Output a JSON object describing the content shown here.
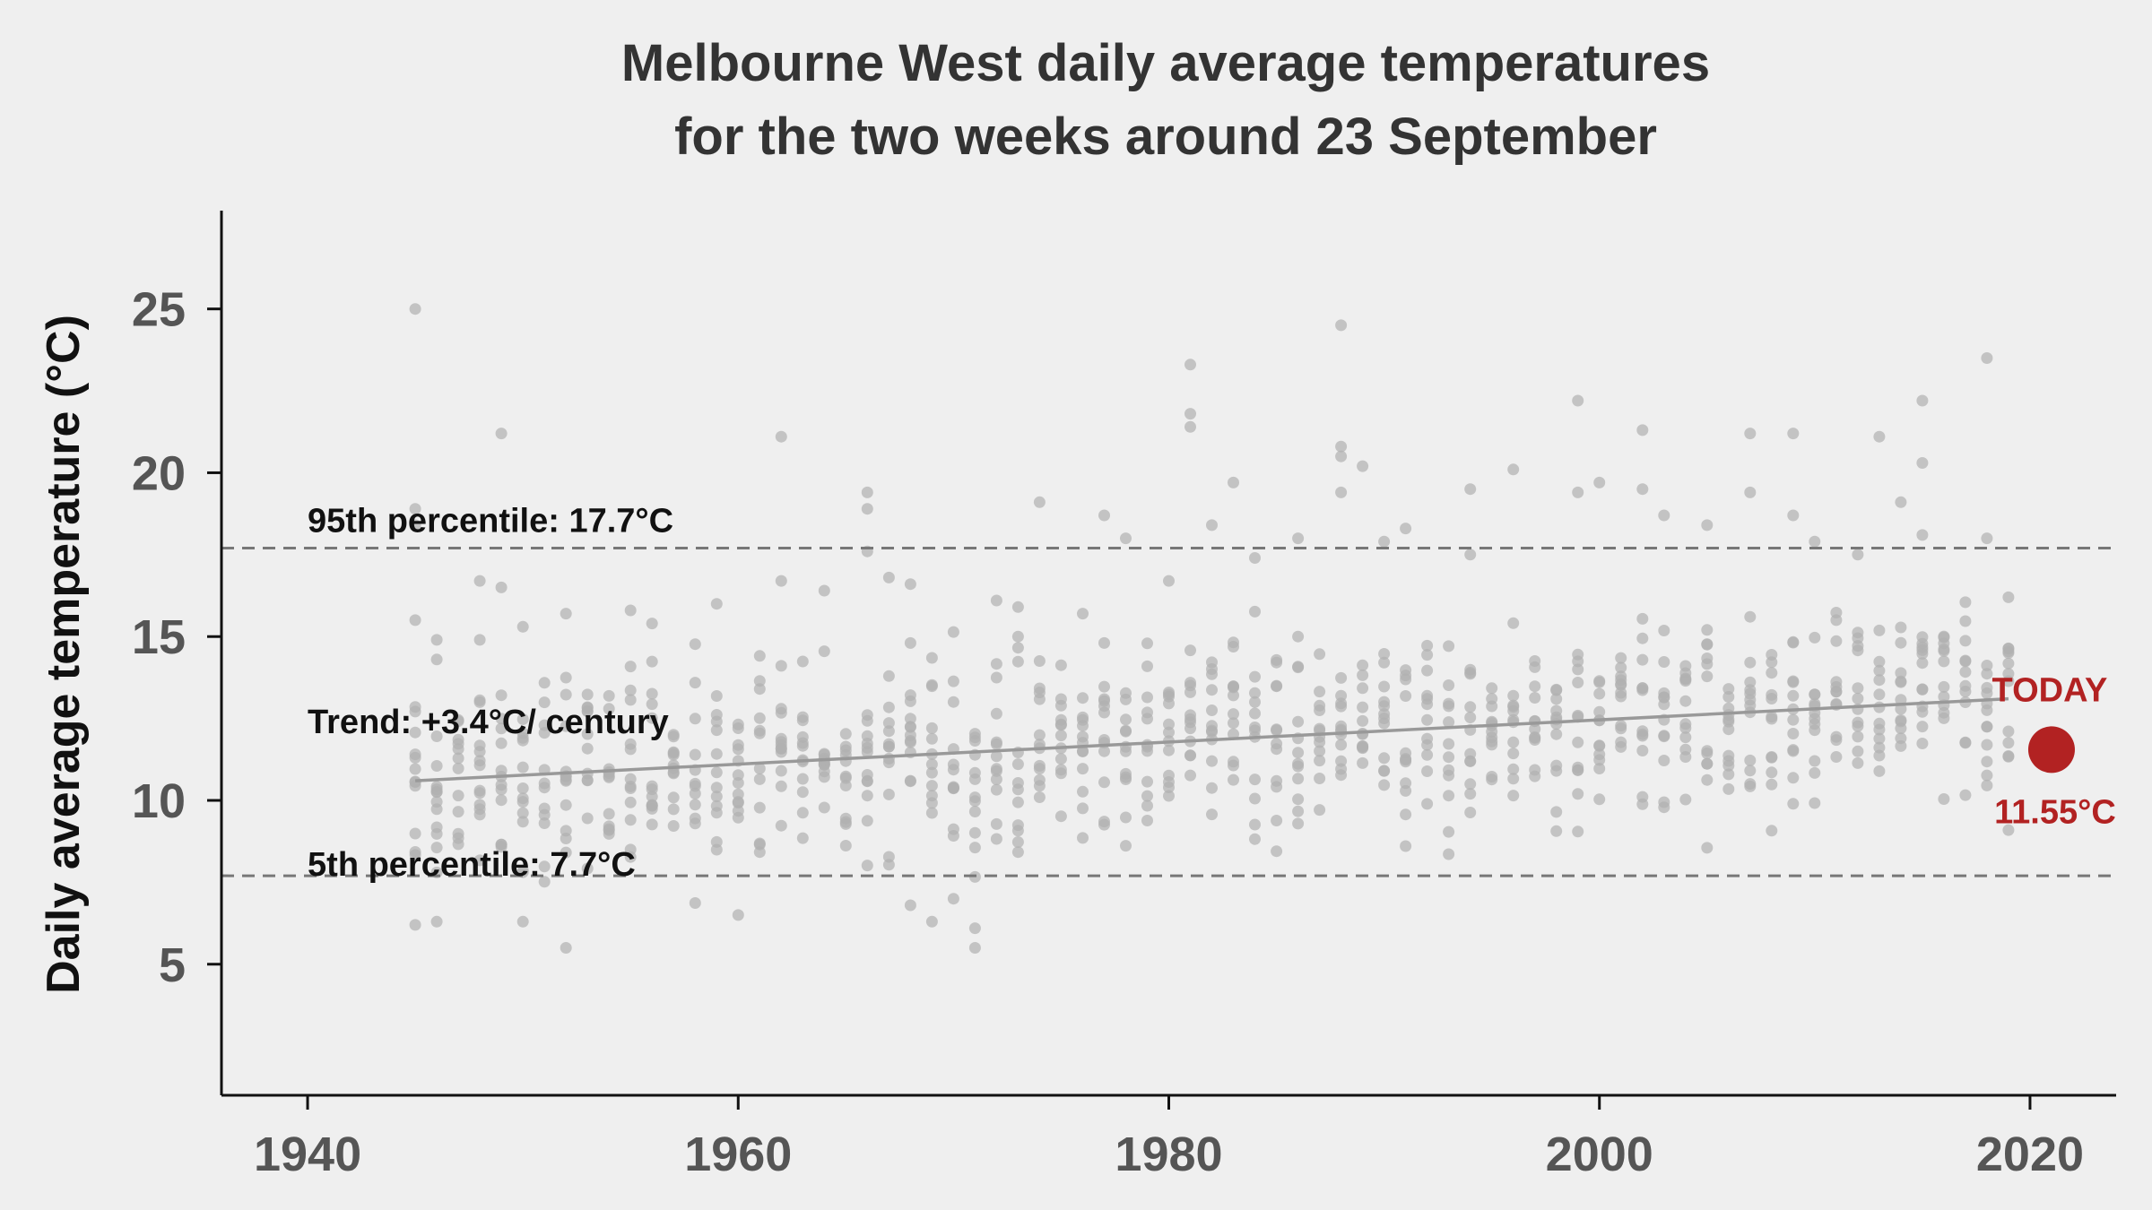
{
  "chart_data": {
    "type": "scatter",
    "title_lines": [
      "Melbourne West daily average temperatures",
      "for the two weeks around 23 September"
    ],
    "xlabel": "",
    "ylabel": "Daily average temperature (°C)",
    "xlim": [
      1936,
      2024
    ],
    "ylim": [
      1,
      28
    ],
    "x_ticks": [
      1940,
      1960,
      1980,
      2000,
      2020
    ],
    "y_ticks": [
      5,
      10,
      15,
      20,
      25
    ],
    "x_tick_labels": [
      "1940",
      "1960",
      "1980",
      "2000",
      "2020"
    ],
    "y_tick_labels": [
      "5",
      "10",
      "15",
      "20",
      "25"
    ],
    "grid": false,
    "point_color": "#b0b0b0",
    "annotation_color": "#b22222",
    "line_color": "#999999",
    "dash_color": "#777777",
    "percentile_95": {
      "label": "95th percentile:  17.7°C",
      "value": 17.7
    },
    "percentile_5": {
      "label": "5th percentile:  7.7°C",
      "value": 7.7
    },
    "trend": {
      "label": "Trend: +3.4°C/ century",
      "x": [
        1945,
        2019
      ],
      "y": [
        10.6,
        13.1
      ]
    },
    "today": {
      "label": "TODAY",
      "value_label": "11.55°C",
      "x": 2021,
      "y": 11.55
    },
    "years_range": [
      1945,
      2019
    ],
    "points": [
      {
        "x": 1945,
        "y": 25.0
      },
      {
        "x": 1945,
        "y": 18.9
      },
      {
        "x": 1945,
        "y": 18.4
      },
      {
        "x": 1945,
        "y": 15.5
      },
      {
        "x": 1945,
        "y": 6.2
      },
      {
        "x": 1946,
        "y": 14.9
      },
      {
        "x": 1946,
        "y": 14.3
      },
      {
        "x": 1946,
        "y": 6.3
      },
      {
        "x": 1948,
        "y": 16.7
      },
      {
        "x": 1948,
        "y": 14.9
      },
      {
        "x": 1949,
        "y": 21.2
      },
      {
        "x": 1949,
        "y": 16.5
      },
      {
        "x": 1950,
        "y": 15.3
      },
      {
        "x": 1950,
        "y": 6.3
      },
      {
        "x": 1952,
        "y": 15.7
      },
      {
        "x": 1952,
        "y": 5.5
      },
      {
        "x": 1955,
        "y": 15.8
      },
      {
        "x": 1956,
        "y": 15.4
      },
      {
        "x": 1959,
        "y": 16.0
      },
      {
        "x": 1960,
        "y": 6.5
      },
      {
        "x": 1962,
        "y": 21.1
      },
      {
        "x": 1962,
        "y": 16.7
      },
      {
        "x": 1964,
        "y": 16.4
      },
      {
        "x": 1966,
        "y": 19.4
      },
      {
        "x": 1966,
        "y": 18.9
      },
      {
        "x": 1966,
        "y": 17.6
      },
      {
        "x": 1967,
        "y": 16.8
      },
      {
        "x": 1968,
        "y": 16.6
      },
      {
        "x": 1968,
        "y": 6.8
      },
      {
        "x": 1969,
        "y": 6.3
      },
      {
        "x": 1970,
        "y": 7.0
      },
      {
        "x": 1971,
        "y": 5.5
      },
      {
        "x": 1971,
        "y": 6.1
      },
      {
        "x": 1972,
        "y": 16.1
      },
      {
        "x": 1973,
        "y": 15.9
      },
      {
        "x": 1974,
        "y": 19.1
      },
      {
        "x": 1976,
        "y": 15.7
      },
      {
        "x": 1977,
        "y": 18.7
      },
      {
        "x": 1978,
        "y": 18.0
      },
      {
        "x": 1980,
        "y": 16.7
      },
      {
        "x": 1981,
        "y": 23.3
      },
      {
        "x": 1981,
        "y": 21.8
      },
      {
        "x": 1981,
        "y": 21.4
      },
      {
        "x": 1982,
        "y": 18.4
      },
      {
        "x": 1983,
        "y": 19.7
      },
      {
        "x": 1984,
        "y": 17.4
      },
      {
        "x": 1986,
        "y": 18.0
      },
      {
        "x": 1988,
        "y": 24.5
      },
      {
        "x": 1988,
        "y": 20.8
      },
      {
        "x": 1988,
        "y": 20.5
      },
      {
        "x": 1988,
        "y": 19.4
      },
      {
        "x": 1989,
        "y": 20.2
      },
      {
        "x": 1990,
        "y": 17.9
      },
      {
        "x": 1991,
        "y": 18.3
      },
      {
        "x": 1994,
        "y": 19.5
      },
      {
        "x": 1994,
        "y": 17.5
      },
      {
        "x": 1996,
        "y": 20.1
      },
      {
        "x": 1999,
        "y": 22.2
      },
      {
        "x": 1999,
        "y": 19.4
      },
      {
        "x": 2000,
        "y": 19.7
      },
      {
        "x": 2002,
        "y": 21.3
      },
      {
        "x": 2002,
        "y": 19.5
      },
      {
        "x": 2003,
        "y": 18.7
      },
      {
        "x": 2005,
        "y": 18.4
      },
      {
        "x": 2007,
        "y": 21.2
      },
      {
        "x": 2007,
        "y": 19.4
      },
      {
        "x": 2009,
        "y": 21.2
      },
      {
        "x": 2009,
        "y": 18.7
      },
      {
        "x": 2010,
        "y": 17.9
      },
      {
        "x": 2012,
        "y": 17.5
      },
      {
        "x": 2013,
        "y": 21.1
      },
      {
        "x": 2014,
        "y": 19.1
      },
      {
        "x": 2015,
        "y": 22.2
      },
      {
        "x": 2015,
        "y": 20.3
      },
      {
        "x": 2015,
        "y": 18.1
      },
      {
        "x": 2018,
        "y": 23.5
      },
      {
        "x": 2018,
        "y": 18.0
      },
      {
        "x": 2019,
        "y": 16.2
      }
    ]
  }
}
